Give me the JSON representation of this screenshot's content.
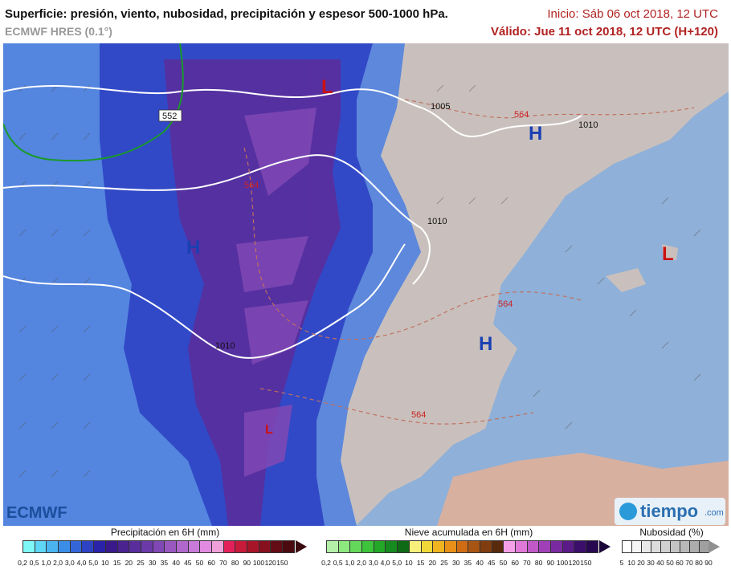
{
  "header": {
    "title": "Superficie: presión, viento, nubosidad, precipitación y espesor 500-1000 hPa.",
    "model": "ECMWF HRES (0.1°)",
    "init": "Inicio: Sáb 06 oct 2018, 12 UTC",
    "valid": "Válido: Jue 11 oct 2018, 12 UTC (H+120)"
  },
  "map": {
    "isobar_labels": [
      "1005",
      "1010",
      "1010",
      "1010"
    ],
    "thickness_labels": [
      "552",
      "564",
      "564",
      "564",
      "564"
    ],
    "pressure_centers": [
      {
        "label": "L",
        "color": "#cc1111"
      },
      {
        "label": "H",
        "color": "#1a3fb3"
      },
      {
        "label": "H",
        "color": "#1a3fb3"
      },
      {
        "label": "H",
        "color": "#1a3fb3"
      },
      {
        "label": "L",
        "color": "#cc1111"
      },
      {
        "label": "L",
        "color": "#cc1111"
      }
    ]
  },
  "legends": {
    "precip": {
      "title": "Precipitación en 6H (mm)",
      "ticks": [
        "0,2",
        "0,5",
        "1,0",
        "2,0",
        "3,0",
        "4,0",
        "5,0",
        "10",
        "15",
        "20",
        "25",
        "30",
        "35",
        "40",
        "45",
        "50",
        "60",
        "70",
        "80",
        "90",
        "100",
        "120",
        "150"
      ],
      "colors": [
        "#7ef7f7",
        "#5fd6f5",
        "#49b4f0",
        "#3b8ee8",
        "#3566d8",
        "#2e42c4",
        "#2a22a8",
        "#3a1a8a",
        "#4a2390",
        "#5a2d9c",
        "#6b3aa8",
        "#8048b4",
        "#9858c0",
        "#b068cc",
        "#c87ad8",
        "#e08ae0",
        "#f0a0d8",
        "#e4205a",
        "#c81a3a",
        "#a81428",
        "#86101e",
        "#640c16",
        "#4a0a10"
      ]
    },
    "snow": {
      "title": "Nieve acumulada en 6H (mm)",
      "ticks": [
        "0,2",
        "0,5",
        "1,0",
        "2,0",
        "3,0",
        "4,0",
        "5,0",
        "10",
        "15",
        "20",
        "25",
        "30",
        "35",
        "40",
        "45",
        "50",
        "60",
        "70",
        "80",
        "90",
        "100",
        "120",
        "150"
      ],
      "colors": [
        "#b4f0a8",
        "#8ee880",
        "#64d85a",
        "#3cc43a",
        "#22a826",
        "#168a1e",
        "#0e6a14",
        "#f8f07a",
        "#f0d838",
        "#f0b420",
        "#e89018",
        "#d06c14",
        "#a85412",
        "#803e10",
        "#5a2a0c",
        "#f4a0e8",
        "#e078d8",
        "#c058c8",
        "#a040b8",
        "#7a2aa0",
        "#5a1a88",
        "#3c0e6c",
        "#280850"
      ]
    },
    "cloud": {
      "title": "Nubosidad (%)",
      "ticks": [
        "5",
        "10",
        "20",
        "30",
        "40",
        "50",
        "60",
        "70",
        "80",
        "90"
      ],
      "colors": [
        "#ffffff",
        "#f4f4f4",
        "#e8e8e8",
        "#dcdcdc",
        "#d0d0d0",
        "#c4c4c4",
        "#b8b8b8",
        "#acacac",
        "#a0a0a0"
      ]
    }
  },
  "logos": {
    "left": "ECMWF",
    "right": "tiempo",
    "right_suffix": ".com"
  }
}
